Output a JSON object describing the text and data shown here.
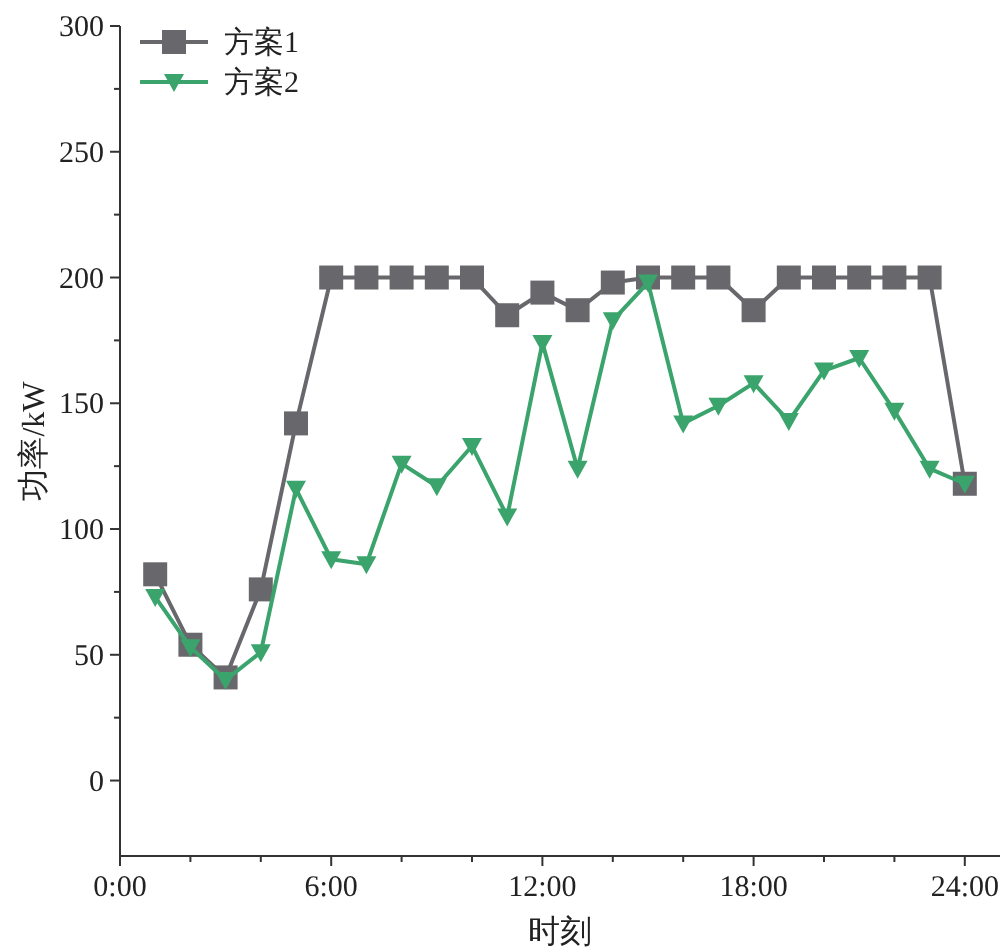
{
  "chart_data": {
    "type": "line",
    "xlabel": "时刻",
    "ylabel": "功率/kW",
    "legend": "top left",
    "grid": false,
    "x": [
      1,
      2,
      3,
      4,
      5,
      6,
      7,
      8,
      9,
      10,
      11,
      12,
      13,
      14,
      15,
      16,
      17,
      18,
      19,
      20,
      21,
      22,
      23,
      24
    ],
    "series": [
      {
        "name": "方案1",
        "color": "#68686c",
        "marker": "square",
        "values": [
          82,
          54,
          41,
          76,
          142,
          200,
          200,
          200,
          200,
          200,
          185,
          194,
          187,
          198,
          200,
          200,
          200,
          187,
          200,
          200,
          200,
          200,
          200,
          118
        ]
      },
      {
        "name": "方案2",
        "color": "#3aa46c",
        "marker": "triangle",
        "values": [
          73,
          53,
          40,
          51,
          116,
          88,
          86,
          126,
          117,
          133,
          105,
          174,
          124,
          183,
          198,
          142,
          149,
          158,
          143,
          163,
          168,
          147,
          124,
          118
        ]
      }
    ],
    "xlim": [
      0,
      25
    ],
    "ylim": [
      -30,
      300
    ],
    "xticks": [
      {
        "value": 0,
        "label": "0:00"
      },
      {
        "value": 2,
        "label": null
      },
      {
        "value": 4,
        "label": null
      },
      {
        "value": 6,
        "label": "6:00"
      },
      {
        "value": 8,
        "label": null
      },
      {
        "value": 10,
        "label": null
      },
      {
        "value": 12,
        "label": "12:00"
      },
      {
        "value": 14,
        "label": null
      },
      {
        "value": 16,
        "label": null
      },
      {
        "value": 18,
        "label": "18:00"
      },
      {
        "value": 20,
        "label": null
      },
      {
        "value": 22,
        "label": null
      },
      {
        "value": 24,
        "label": "24:00"
      }
    ],
    "yticks": [
      0,
      {
        "value": 25,
        "label": null
      },
      50,
      {
        "value": 75,
        "label": null
      },
      100,
      {
        "value": 125,
        "label": null
      },
      150,
      {
        "value": 175,
        "label": null
      },
      200,
      {
        "value": 225,
        "label": null
      },
      250,
      {
        "value": 275,
        "label": null
      },
      300
    ]
  }
}
